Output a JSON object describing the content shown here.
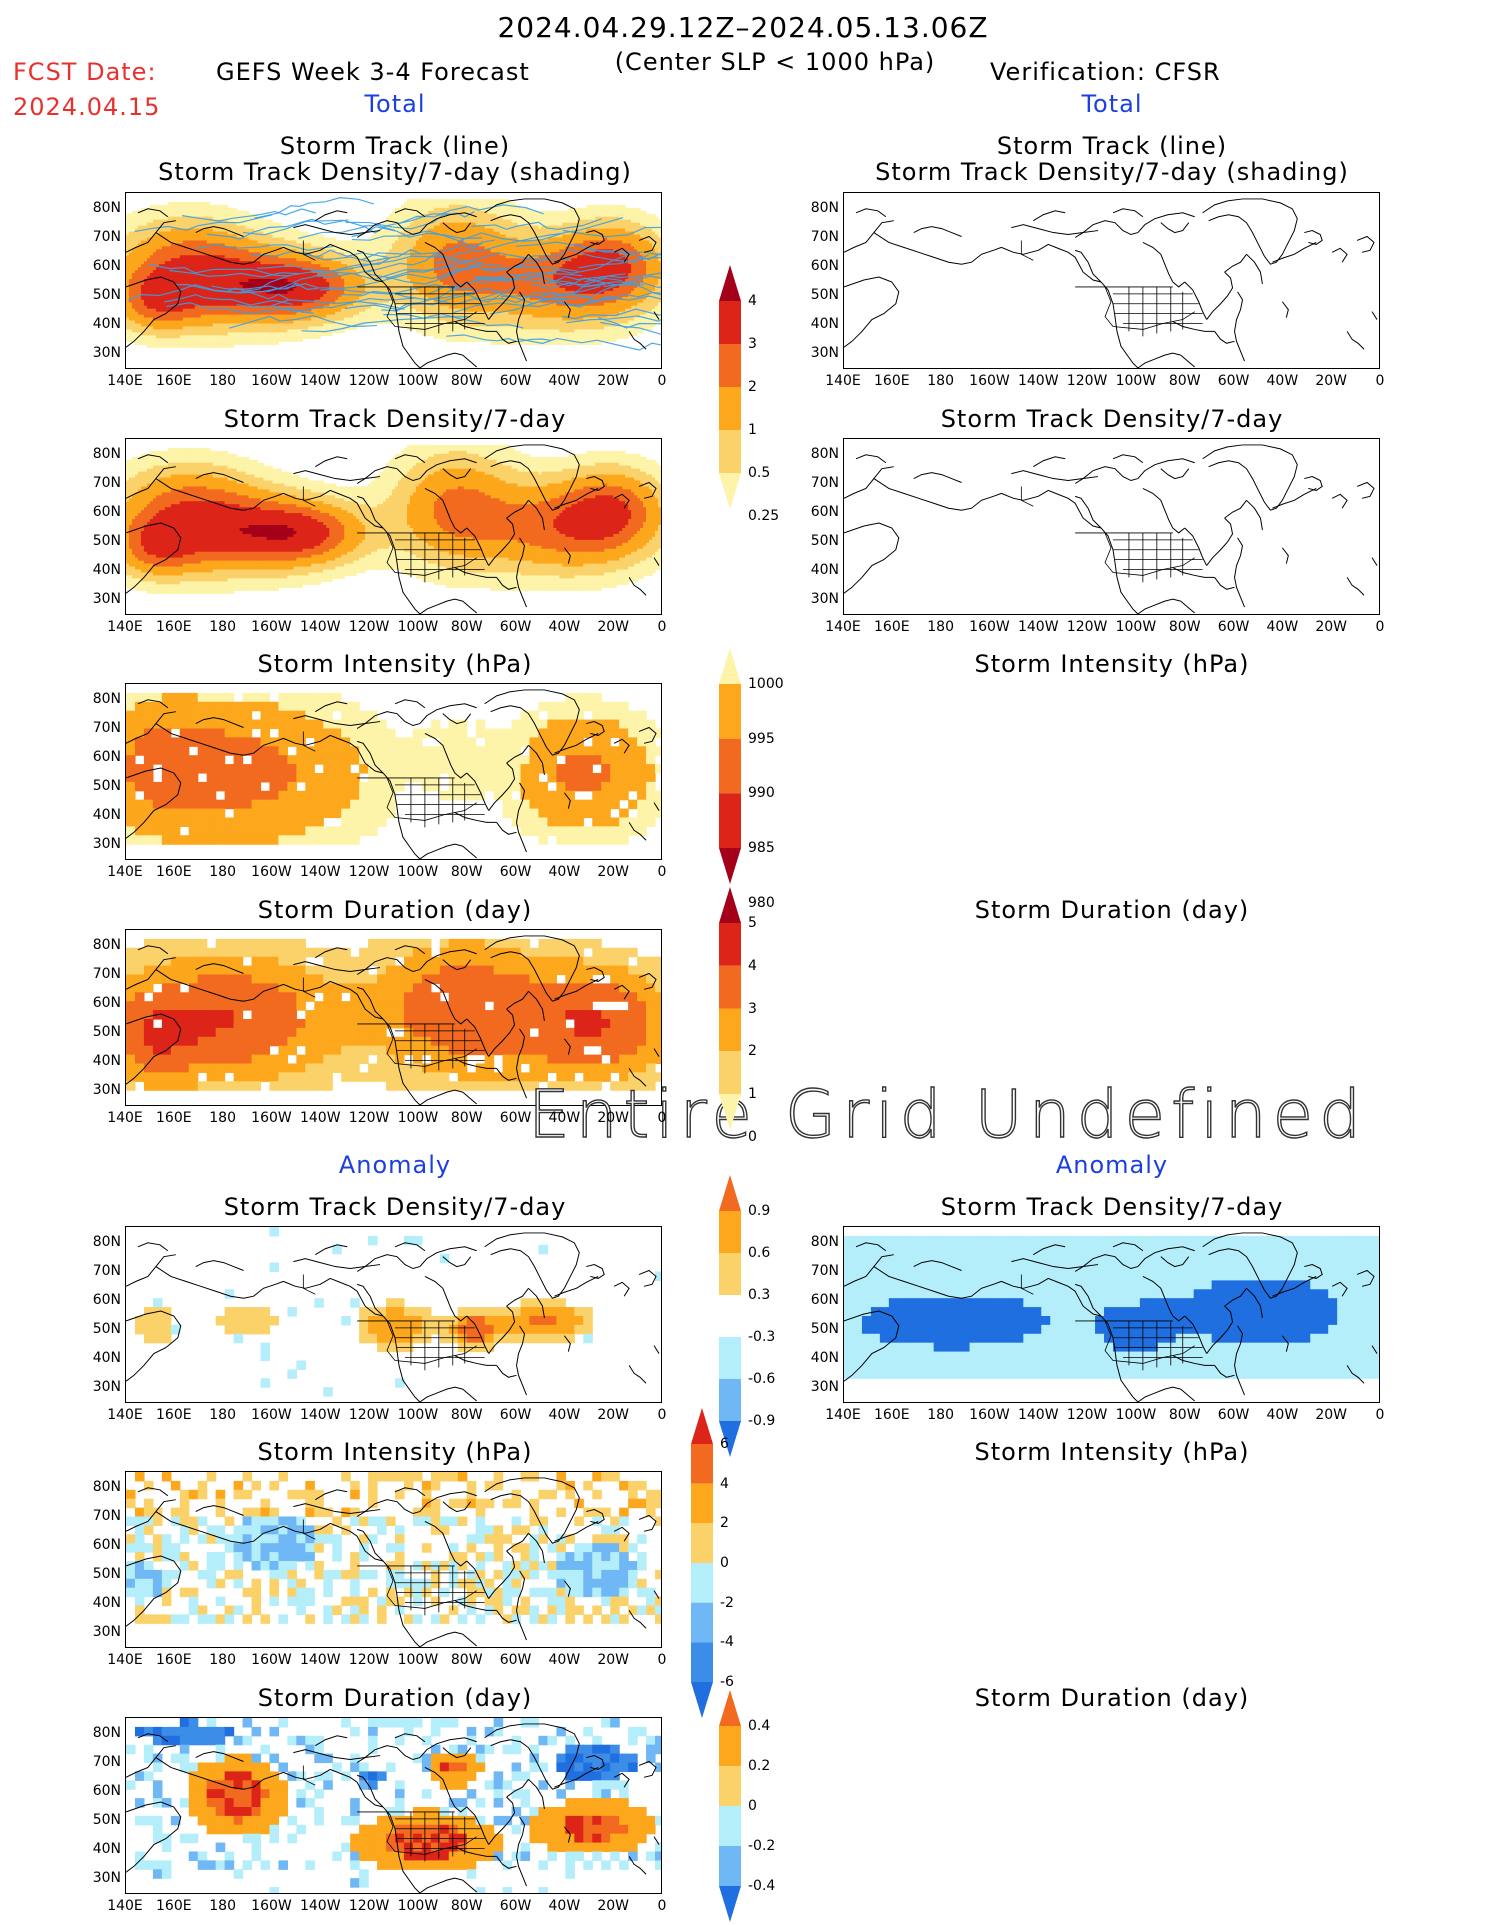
{
  "header": {
    "date_range": "2024.04.29.12Z–2024.05.13.06Z",
    "condition": "(Center SLP < 1000 hPa)",
    "fcst_label": "FCST Date:",
    "fcst_date": "2024.04.15",
    "forecast_title": "GEFS Week 3-4 Forecast",
    "verification_title": "Verification: CFSR"
  },
  "sections": {
    "total_left": "Total",
    "total_right": "Total",
    "anomaly_left": "Anomaly",
    "anomaly_right": "Anomaly"
  },
  "panel_titles": {
    "track_line": "Storm Track (line)",
    "track_density_shading": "Storm Track Density/7-day (shading)",
    "track_density": "Storm Track Density/7-day",
    "intensity": "Storm Intensity (hPa)",
    "duration": "Storm Duration (day)"
  },
  "axes": {
    "lat_ticks": [
      "80N",
      "70N",
      "60N",
      "50N",
      "40N",
      "30N"
    ],
    "lon_ticks": [
      "140E",
      "160E",
      "180",
      "160W",
      "140W",
      "120W",
      "100W",
      "80W",
      "60W",
      "40W",
      "20W",
      "0"
    ]
  },
  "undefined_message": "Entire Grid Undefined",
  "colorbars": {
    "density_total": {
      "labels": [
        "4",
        "3",
        "2",
        "1",
        "0.5",
        "0.25"
      ],
      "colors": [
        "#a5001a",
        "#dc2418",
        "#f26a1f",
        "#fca71c",
        "#fbd26a",
        "#fdf3a9"
      ]
    },
    "intensity_total": {
      "labels": [
        "1000",
        "995",
        "990",
        "985",
        "980"
      ],
      "colors": [
        "#fdf3a9",
        "#fca71c",
        "#f26a1f",
        "#dc2418",
        "#a5001a"
      ]
    },
    "duration_total": {
      "labels": [
        "5",
        "4",
        "3",
        "2",
        "1",
        "0"
      ],
      "colors": [
        "#a5001a",
        "#dc2418",
        "#f26a1f",
        "#fca71c",
        "#fbd26a",
        "#fdf3a9"
      ]
    },
    "density_anom": {
      "labels": [
        "0.9",
        "0.6",
        "0.3",
        "-0.3",
        "-0.6",
        "-0.9"
      ],
      "colors": [
        "#f26a1f",
        "#fca71c",
        "#fbd26a",
        "#ffffff",
        "#b4eefa",
        "#6fb8f5",
        "#1f6fe0"
      ]
    },
    "intensity_anom": {
      "labels": [
        "6",
        "4",
        "2",
        "0",
        "-2",
        "-4",
        "-6"
      ],
      "colors": [
        "#dc2418",
        "#f26a1f",
        "#fca71c",
        "#fbd26a",
        "#b4eefa",
        "#6fb8f5",
        "#3b8de8",
        "#1f6fe0"
      ]
    },
    "duration_anom": {
      "labels": [
        "0.4",
        "0.2",
        "0",
        "-0.2",
        "-0.4"
      ],
      "colors": [
        "#f26a1f",
        "#fca71c",
        "#fbd26a",
        "#b4eefa",
        "#6fb8f5",
        "#1f6fe0"
      ]
    }
  }
}
